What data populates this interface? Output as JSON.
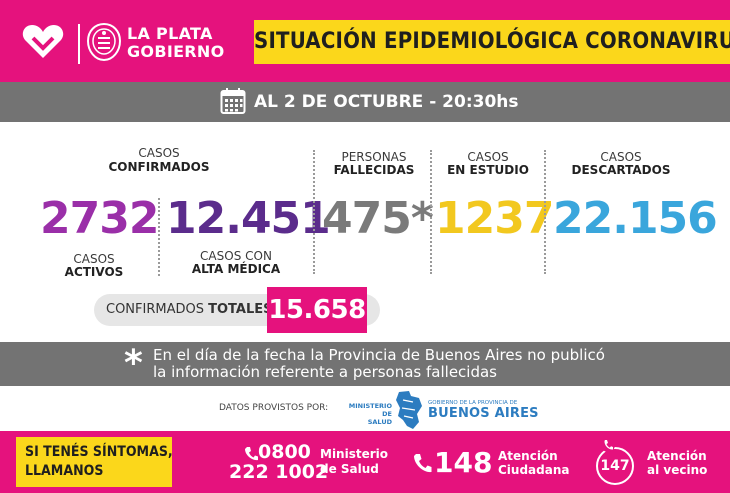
{
  "header": {
    "brand_line1": "LA PLATA",
    "brand_line2": "GOBIERNO",
    "title": "SITUACIÓN EPIDEMIOLÓGICA CORONAVIRUS"
  },
  "date_bar": {
    "icon": "calendar-icon",
    "text": "AL 2 DE OCTUBRE - 20:30hs"
  },
  "stats": {
    "confirmados_label_1": "CASOS",
    "confirmados_label_2": "CONFIRMADOS",
    "activos_value": "2732",
    "activos_label_1": "CASOS",
    "activos_label_2": "ACTIVOS",
    "alta_value": "12.451",
    "alta_label_1": "CASOS CON",
    "alta_label_2": "ALTA MÉDICA",
    "fallecidas_label_1": "PERSONAS",
    "fallecidas_label_2": "FALLECIDAS",
    "fallecidas_value": "475*",
    "estudio_label_1": "CASOS",
    "estudio_label_2": "EN ESTUDIO",
    "estudio_value": "1237",
    "descartados_label_1": "CASOS",
    "descartados_label_2": "DESCARTADOS",
    "descartados_value": "22.156"
  },
  "totals": {
    "label_prefix": "CONFIRMADOS ",
    "label_bold": "TOTALES",
    "value": "15.658"
  },
  "note": {
    "symbol": "*",
    "line1": "En el día de la fecha la Provincia de Buenos Aires no publicó",
    "line2": "la información referente a personas fallecidas"
  },
  "sources": {
    "label": "DATOS PROVISTOS POR:",
    "ministerio_1": "MINISTERIO DE",
    "ministerio_2": "SALUD",
    "gobierno_1": "GOBIERNO DE LA PROVINCIA DE",
    "gobierno_2": "BUENOS AIRES"
  },
  "footer": {
    "symptoms_1": "SI TENÉS SÍNTOMAS,",
    "symptoms_2": "LLAMANOS",
    "phone_1": "0800",
    "phone_2": "222 1002",
    "ministerio_1": "Ministerio",
    "ministerio_2": "de Salud",
    "number_148": "148",
    "atencion_1": "Atención",
    "atencion_2": "Ciudadana",
    "number_147": "147",
    "vecino_1": "Atención",
    "vecino_2": "al vecino"
  },
  "colors": {
    "magenta": "#e5127d",
    "yellow": "#fbd71b",
    "gray_bar": "#737373",
    "activos": "#9a2fa8",
    "alta": "#5b2c8c",
    "fallecidas": "#7a7a7a",
    "estudio": "#f2c81f",
    "descartados": "#3aa6dc"
  }
}
